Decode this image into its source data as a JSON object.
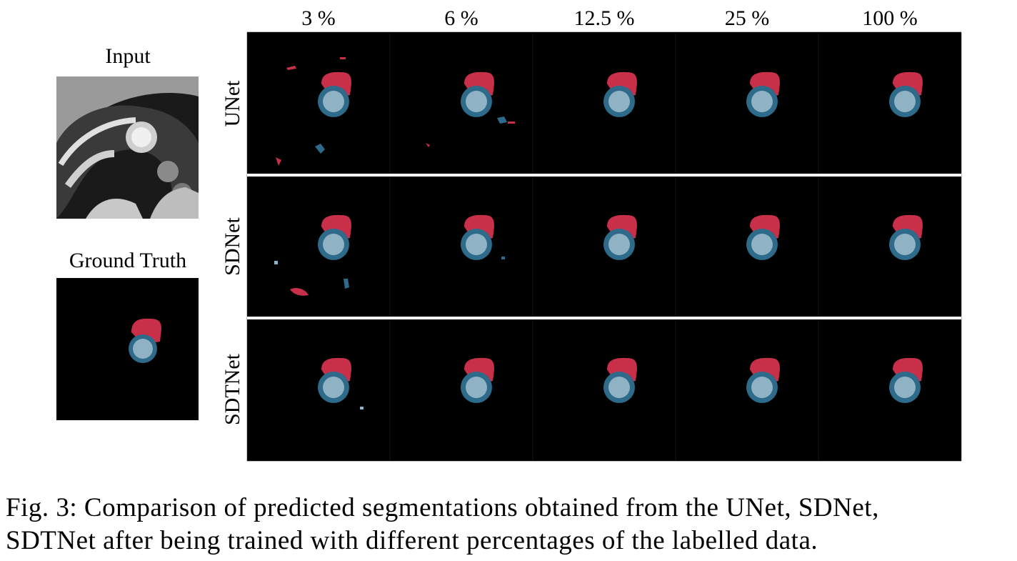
{
  "figure": {
    "input_label": "Input",
    "ground_truth_label": "Ground Truth",
    "columns": [
      "3 %",
      "6 %",
      "12.5 %",
      "25 %",
      "100 %"
    ],
    "rows": [
      "UNet",
      "SDNet",
      "SDTNet"
    ],
    "caption": [
      "Fig. 3: Comparison of predicted segmentations obtained from the UNet, SDNet,",
      "SDTNet after being trained with different percentages of the labelled data."
    ]
  }
}
